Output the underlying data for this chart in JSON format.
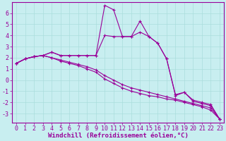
{
  "bg_color": "#c8eef0",
  "line_color": "#990099",
  "grid_color": "#aadddd",
  "xlabel": "Windchill (Refroidissement éolien,°C)",
  "ylim": [
    -3.8,
    7.0
  ],
  "xlim": [
    -0.5,
    23.5
  ],
  "xticks": [
    0,
    1,
    2,
    3,
    4,
    5,
    6,
    7,
    8,
    9,
    10,
    11,
    12,
    13,
    14,
    15,
    16,
    17,
    18,
    19,
    20,
    21,
    22,
    23
  ],
  "yticks": [
    -3,
    -2,
    -1,
    0,
    1,
    2,
    3,
    4,
    5,
    6
  ],
  "line1_x": [
    0,
    1,
    2,
    3,
    4,
    5,
    6,
    7,
    8,
    9,
    10,
    11,
    12,
    13,
    14,
    15,
    16,
    17,
    18,
    19,
    20,
    21,
    22,
    23
  ],
  "line1_y": [
    1.5,
    1.9,
    2.1,
    2.2,
    2.5,
    2.2,
    2.2,
    2.2,
    2.2,
    2.2,
    6.7,
    6.3,
    3.9,
    3.9,
    5.3,
    3.9,
    3.3,
    1.9,
    -1.4,
    -1.1,
    -1.9,
    -2.1,
    -2.3,
    -3.5
  ],
  "line2_x": [
    0,
    1,
    2,
    3,
    4,
    5,
    6,
    7,
    8,
    9,
    10,
    11,
    12,
    13,
    14,
    15,
    16,
    17,
    18,
    19,
    20,
    21,
    22,
    23
  ],
  "line2_y": [
    1.5,
    1.9,
    2.1,
    2.2,
    2.5,
    2.2,
    2.2,
    2.2,
    2.2,
    2.2,
    4.0,
    3.9,
    3.9,
    3.9,
    4.3,
    3.9,
    3.3,
    1.9,
    -1.3,
    -1.1,
    -1.8,
    -2.0,
    -2.2,
    -3.5
  ],
  "line3_x": [
    0,
    1,
    2,
    3,
    4,
    5,
    6,
    7,
    8,
    9,
    10,
    11,
    12,
    13,
    14,
    15,
    16,
    17,
    18,
    19,
    20,
    21,
    22,
    23
  ],
  "line3_y": [
    1.5,
    1.9,
    2.1,
    2.2,
    2.0,
    1.8,
    1.6,
    1.4,
    1.2,
    0.9,
    0.4,
    0.0,
    -0.4,
    -0.7,
    -0.9,
    -1.1,
    -1.3,
    -1.5,
    -1.7,
    -1.9,
    -2.1,
    -2.3,
    -2.5,
    -3.5
  ],
  "line4_x": [
    0,
    1,
    2,
    3,
    4,
    5,
    6,
    7,
    8,
    9,
    10,
    11,
    12,
    13,
    14,
    15,
    16,
    17,
    18,
    19,
    20,
    21,
    22,
    23
  ],
  "line4_y": [
    1.5,
    1.9,
    2.1,
    2.2,
    2.0,
    1.7,
    1.5,
    1.3,
    1.0,
    0.7,
    0.1,
    -0.3,
    -0.7,
    -1.0,
    -1.2,
    -1.4,
    -1.5,
    -1.7,
    -1.8,
    -2.0,
    -2.2,
    -2.4,
    -2.7,
    -3.5
  ],
  "marker": "+",
  "markersize": 3,
  "markeredgewidth": 0.8,
  "linewidth": 0.8,
  "xlabel_fontsize": 6.5,
  "tick_fontsize": 6.0
}
